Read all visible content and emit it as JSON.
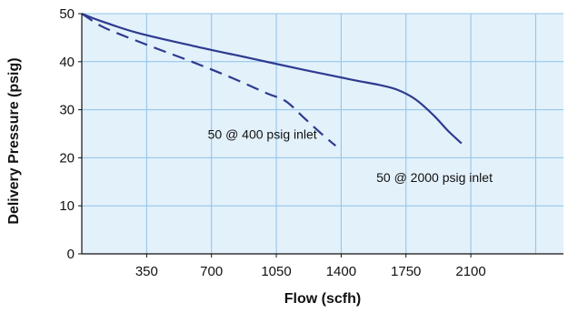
{
  "chart_data": {
    "type": "line",
    "title": "",
    "xlabel": "Flow (scfh)",
    "ylabel": "Delivery Pressure (psig)",
    "xlim": [
      0,
      2600
    ],
    "ylim": [
      0,
      50
    ],
    "xticks": [
      350,
      700,
      1050,
      1400,
      1750,
      2100
    ],
    "yticks": [
      0,
      10,
      20,
      30,
      40,
      50
    ],
    "grid": true,
    "colors": {
      "background": "#e3f1fb",
      "grid": "#8ec3e8",
      "line": "#2e3b8f",
      "axis": "#111111"
    },
    "series": [
      {
        "label": "50 @ 2000 psig inlet",
        "style": "solid",
        "x": [
          0,
          100,
          300,
          600,
          900,
          1200,
          1450,
          1600,
          1700,
          1800,
          1900,
          1980,
          2050
        ],
        "y": [
          50,
          48.5,
          46,
          43.3,
          40.8,
          38.3,
          36.3,
          35.2,
          34.2,
          32.2,
          28.8,
          25.5,
          23
        ]
      },
      {
        "label": "50 @ 400 psig inlet",
        "style": "dashed",
        "x": [
          0,
          100,
          200,
          400,
          600,
          800,
          1000,
          1100,
          1200,
          1300,
          1370
        ],
        "y": [
          50,
          47.5,
          45.8,
          42.8,
          39.9,
          36.8,
          33.4,
          31.8,
          28.3,
          24.8,
          22.5
        ]
      }
    ],
    "annotations": [
      {
        "text": "50 @ 400 psig inlet",
        "x": 680,
        "y": 24
      },
      {
        "text": "50 @ 2000 psig inlet",
        "x": 1590,
        "y": 15
      }
    ]
  }
}
